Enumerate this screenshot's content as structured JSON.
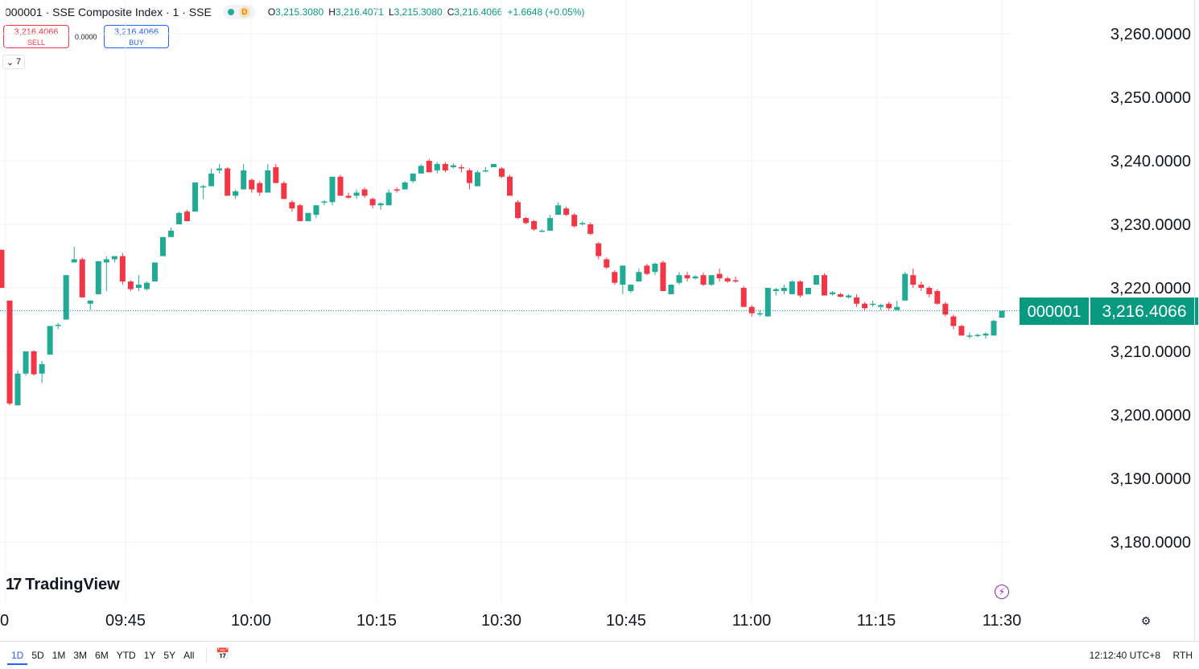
{
  "header": {
    "title": "000001 · SSE Composite Index · 1 · SSE",
    "d_badge": "D",
    "ohlc": {
      "o_label": "O",
      "o_value": "3,215.3080",
      "h_label": "H",
      "h_value": "3,216.4071",
      "l_label": "L",
      "l_value": "3,215.3080",
      "c_label": "C",
      "c_value": "3,216.4066",
      "change": "+1.6648 (+0.05%)"
    }
  },
  "trade": {
    "sell_price": "3,216.4066",
    "sell_label": "SELL",
    "spread": "0.0000",
    "buy_price": "3,216.4066",
    "buy_label": "BUY"
  },
  "indicators_toggle": {
    "count": "7"
  },
  "logo": {
    "text": "TradingView"
  },
  "price_tag": {
    "symbol": "000001",
    "price": "3,216.4066"
  },
  "toolbar": {
    "ranges": [
      "1D",
      "5D",
      "1M",
      "3M",
      "6M",
      "YTD",
      "1Y",
      "5Y",
      "All"
    ],
    "active_range": "1D",
    "clock": "12:12:40 UTC+8",
    "session": "RTH"
  },
  "colors": {
    "up": "#22ab94",
    "down": "#f23645",
    "grid": "#f0f3fa",
    "tag": "#089981"
  },
  "chart_data": {
    "type": "candlestick",
    "x_tick_labels": [
      "0",
      "09:45",
      "10:00",
      "10:15",
      "10:30",
      "10:45",
      "11:00",
      "11:15",
      "11:30"
    ],
    "y_tick_labels": [
      "3,260.0000",
      "3,250.0000",
      "3,240.0000",
      "3,230.0000",
      "3,220.0000",
      "3,210.0000",
      "3,200.0000",
      "3,190.0000",
      "3,180.0000"
    ],
    "y_ticks": [
      3260,
      3250,
      3240,
      3230,
      3220,
      3210,
      3200,
      3190,
      3180
    ],
    "last_price": 3216.4066,
    "candles": [
      {
        "o": 3226.0,
        "h": 3226.0,
        "l": 3220.0,
        "c": 3220.0
      },
      {
        "o": 3218.0,
        "h": 3218.0,
        "l": 3201.5,
        "c": 3201.8
      },
      {
        "o": 3201.5,
        "h": 3207.0,
        "l": 3201.5,
        "c": 3206.5
      },
      {
        "o": 3206.5,
        "h": 3210.0,
        "l": 3206.2,
        "c": 3210.0
      },
      {
        "o": 3210.0,
        "h": 3210.2,
        "l": 3206.2,
        "c": 3206.4
      },
      {
        "o": 3206.5,
        "h": 3208.5,
        "l": 3205.0,
        "c": 3208.0
      },
      {
        "o": 3209.5,
        "h": 3214.0,
        "l": 3209.5,
        "c": 3214.0
      },
      {
        "o": 3214.0,
        "h": 3214.5,
        "l": 3213.5,
        "c": 3214.2
      },
      {
        "o": 3215.0,
        "h": 3222.0,
        "l": 3215.0,
        "c": 3222.0
      },
      {
        "o": 3224.0,
        "h": 3226.5,
        "l": 3224.0,
        "c": 3224.5
      },
      {
        "o": 3224.5,
        "h": 3224.8,
        "l": 3218.5,
        "c": 3218.5
      },
      {
        "o": 3217.5,
        "h": 3218.0,
        "l": 3216.5,
        "c": 3218.0
      },
      {
        "o": 3219.0,
        "h": 3224.2,
        "l": 3219.0,
        "c": 3224.2
      },
      {
        "o": 3224.0,
        "h": 3225.0,
        "l": 3219.5,
        "c": 3224.5
      },
      {
        "o": 3224.5,
        "h": 3224.8,
        "l": 3224.0,
        "c": 3225.0
      },
      {
        "o": 3225.0,
        "h": 3225.5,
        "l": 3220.5,
        "c": 3221.0
      },
      {
        "o": 3221.0,
        "h": 3221.2,
        "l": 3219.5,
        "c": 3219.8
      },
      {
        "o": 3220.0,
        "h": 3222.0,
        "l": 3219.5,
        "c": 3220.5
      },
      {
        "o": 3219.8,
        "h": 3221.0,
        "l": 3219.6,
        "c": 3220.8
      },
      {
        "o": 3221.0,
        "h": 3224.0,
        "l": 3221.0,
        "c": 3224.0
      },
      {
        "o": 3225.0,
        "h": 3228.0,
        "l": 3225.0,
        "c": 3228.0
      },
      {
        "o": 3228.0,
        "h": 3229.5,
        "l": 3228.0,
        "c": 3229.0
      },
      {
        "o": 3230.0,
        "h": 3232.0,
        "l": 3230.0,
        "c": 3231.8
      },
      {
        "o": 3232.0,
        "h": 3232.3,
        "l": 3230.5,
        "c": 3230.5
      },
      {
        "o": 3232.0,
        "h": 3236.6,
        "l": 3232.0,
        "c": 3236.6
      },
      {
        "o": 3235.8,
        "h": 3236.2,
        "l": 3234.0,
        "c": 3236.0
      },
      {
        "o": 3236.0,
        "h": 3238.8,
        "l": 3236.0,
        "c": 3238.0
      },
      {
        "o": 3238.5,
        "h": 3239.5,
        "l": 3238.0,
        "c": 3238.8
      },
      {
        "o": 3238.8,
        "h": 3239.0,
        "l": 3234.5,
        "c": 3234.5
      },
      {
        "o": 3234.5,
        "h": 3235.5,
        "l": 3234.0,
        "c": 3235.2
      },
      {
        "o": 3235.5,
        "h": 3239.5,
        "l": 3235.5,
        "c": 3238.5
      },
      {
        "o": 3237.0,
        "h": 3237.2,
        "l": 3235.0,
        "c": 3235.5
      },
      {
        "o": 3236.5,
        "h": 3236.8,
        "l": 3234.5,
        "c": 3235.0
      },
      {
        "o": 3235.0,
        "h": 3239.5,
        "l": 3235.0,
        "c": 3238.5
      },
      {
        "o": 3239.0,
        "h": 3239.5,
        "l": 3236.5,
        "c": 3236.5
      },
      {
        "o": 3236.5,
        "h": 3236.8,
        "l": 3234.0,
        "c": 3234.0
      },
      {
        "o": 3233.5,
        "h": 3233.8,
        "l": 3232.0,
        "c": 3232.5
      },
      {
        "o": 3233.0,
        "h": 3233.2,
        "l": 3230.5,
        "c": 3230.5
      },
      {
        "o": 3230.5,
        "h": 3231.5,
        "l": 3230.5,
        "c": 3231.8
      },
      {
        "o": 3231.5,
        "h": 3233.0,
        "l": 3231.0,
        "c": 3233.0
      },
      {
        "o": 3233.5,
        "h": 3233.8,
        "l": 3233.0,
        "c": 3233.6
      },
      {
        "o": 3233.5,
        "h": 3237.5,
        "l": 3233.0,
        "c": 3237.5
      },
      {
        "o": 3237.5,
        "h": 3237.8,
        "l": 3234.5,
        "c": 3234.5
      },
      {
        "o": 3234.5,
        "h": 3235.0,
        "l": 3234.0,
        "c": 3234.2
      },
      {
        "o": 3234.5,
        "h": 3235.5,
        "l": 3234.0,
        "c": 3235.0
      },
      {
        "o": 3235.5,
        "h": 3235.8,
        "l": 3234.2,
        "c": 3234.5
      },
      {
        "o": 3234.0,
        "h": 3234.2,
        "l": 3232.5,
        "c": 3233.0
      },
      {
        "o": 3233.0,
        "h": 3233.5,
        "l": 3232.3,
        "c": 3233.3
      },
      {
        "o": 3233.0,
        "h": 3235.5,
        "l": 3233.0,
        "c": 3235.0
      },
      {
        "o": 3235.5,
        "h": 3235.8,
        "l": 3235.0,
        "c": 3235.3
      },
      {
        "o": 3235.5,
        "h": 3236.8,
        "l": 3235.5,
        "c": 3236.6
      },
      {
        "o": 3236.8,
        "h": 3238.0,
        "l": 3236.5,
        "c": 3238.0
      },
      {
        "o": 3238.0,
        "h": 3239.5,
        "l": 3238.0,
        "c": 3239.2
      },
      {
        "o": 3240.0,
        "h": 3240.3,
        "l": 3238.2,
        "c": 3238.2
      },
      {
        "o": 3238.5,
        "h": 3239.8,
        "l": 3238.0,
        "c": 3239.5
      },
      {
        "o": 3239.5,
        "h": 3239.8,
        "l": 3238.2,
        "c": 3238.5
      },
      {
        "o": 3239.0,
        "h": 3239.6,
        "l": 3238.8,
        "c": 3239.3
      },
      {
        "o": 3239.0,
        "h": 3239.4,
        "l": 3238.2,
        "c": 3238.8
      },
      {
        "o": 3238.5,
        "h": 3238.8,
        "l": 3235.5,
        "c": 3236.5
      },
      {
        "o": 3236.0,
        "h": 3238.5,
        "l": 3236.0,
        "c": 3238.2
      },
      {
        "o": 3238.5,
        "h": 3239.0,
        "l": 3238.2,
        "c": 3238.5
      },
      {
        "o": 3239.0,
        "h": 3239.5,
        "l": 3239.0,
        "c": 3239.5
      },
      {
        "o": 3238.8,
        "h": 3239.0,
        "l": 3237.3,
        "c": 3237.5
      },
      {
        "o": 3237.5,
        "h": 3237.8,
        "l": 3234.5,
        "c": 3234.5
      },
      {
        "o": 3233.5,
        "h": 3233.8,
        "l": 3230.8,
        "c": 3231.0
      },
      {
        "o": 3231.0,
        "h": 3231.2,
        "l": 3230.0,
        "c": 3230.2
      },
      {
        "o": 3230.5,
        "h": 3230.7,
        "l": 3229.0,
        "c": 3229.2
      },
      {
        "o": 3229.0,
        "h": 3229.2,
        "l": 3228.8,
        "c": 3229.0
      },
      {
        "o": 3229.0,
        "h": 3231.5,
        "l": 3229.0,
        "c": 3231.0
      },
      {
        "o": 3231.5,
        "h": 3233.5,
        "l": 3231.5,
        "c": 3233.0
      },
      {
        "o": 3232.5,
        "h": 3232.8,
        "l": 3231.3,
        "c": 3231.5
      },
      {
        "o": 3231.5,
        "h": 3231.8,
        "l": 3229.5,
        "c": 3229.7
      },
      {
        "o": 3230.0,
        "h": 3230.5,
        "l": 3229.8,
        "c": 3230.2
      },
      {
        "o": 3230.0,
        "h": 3230.3,
        "l": 3228.3,
        "c": 3228.5
      },
      {
        "o": 3227.0,
        "h": 3227.2,
        "l": 3224.5,
        "c": 3225.0
      },
      {
        "o": 3224.5,
        "h": 3224.8,
        "l": 3223.0,
        "c": 3223.2
      },
      {
        "o": 3222.5,
        "h": 3222.8,
        "l": 3220.5,
        "c": 3220.8
      },
      {
        "o": 3220.5,
        "h": 3223.5,
        "l": 3219.0,
        "c": 3223.5
      },
      {
        "o": 3219.5,
        "h": 3220.5,
        "l": 3219.2,
        "c": 3220.5
      },
      {
        "o": 3221.0,
        "h": 3223.0,
        "l": 3221.0,
        "c": 3222.5
      },
      {
        "o": 3223.5,
        "h": 3223.8,
        "l": 3222.0,
        "c": 3222.2
      },
      {
        "o": 3222.5,
        "h": 3224.0,
        "l": 3222.0,
        "c": 3223.8
      },
      {
        "o": 3224.0,
        "h": 3224.3,
        "l": 3219.5,
        "c": 3219.5
      },
      {
        "o": 3219.0,
        "h": 3220.5,
        "l": 3219.0,
        "c": 3220.5
      },
      {
        "o": 3220.8,
        "h": 3222.5,
        "l": 3220.5,
        "c": 3222.0
      },
      {
        "o": 3222.0,
        "h": 3222.5,
        "l": 3221.0,
        "c": 3221.5
      },
      {
        "o": 3221.5,
        "h": 3222.0,
        "l": 3221.3,
        "c": 3221.8
      },
      {
        "o": 3222.0,
        "h": 3222.4,
        "l": 3220.3,
        "c": 3220.5
      },
      {
        "o": 3220.5,
        "h": 3222.0,
        "l": 3220.3,
        "c": 3222.0
      },
      {
        "o": 3222.2,
        "h": 3223.0,
        "l": 3221.0,
        "c": 3221.5
      },
      {
        "o": 3221.5,
        "h": 3221.8,
        "l": 3220.8,
        "c": 3221.0
      },
      {
        "o": 3221.2,
        "h": 3221.8,
        "l": 3220.8,
        "c": 3221.0
      },
      {
        "o": 3220.0,
        "h": 3220.3,
        "l": 3217.0,
        "c": 3217.0
      },
      {
        "o": 3217.0,
        "h": 3217.3,
        "l": 3215.5,
        "c": 3216.0
      },
      {
        "o": 3216.0,
        "h": 3216.5,
        "l": 3215.5,
        "c": 3216.0
      },
      {
        "o": 3215.5,
        "h": 3220.0,
        "l": 3215.5,
        "c": 3220.0
      },
      {
        "o": 3219.5,
        "h": 3220.0,
        "l": 3218.8,
        "c": 3219.8
      },
      {
        "o": 3219.5,
        "h": 3220.5,
        "l": 3219.0,
        "c": 3220.0
      },
      {
        "o": 3219.0,
        "h": 3221.2,
        "l": 3219.0,
        "c": 3221.0
      },
      {
        "o": 3221.0,
        "h": 3221.2,
        "l": 3218.5,
        "c": 3218.8
      },
      {
        "o": 3219.0,
        "h": 3220.0,
        "l": 3219.0,
        "c": 3220.0
      },
      {
        "o": 3220.5,
        "h": 3222.0,
        "l": 3220.5,
        "c": 3222.0
      },
      {
        "o": 3222.0,
        "h": 3222.3,
        "l": 3218.8,
        "c": 3218.8
      },
      {
        "o": 3219.0,
        "h": 3219.5,
        "l": 3218.8,
        "c": 3219.3
      },
      {
        "o": 3219.0,
        "h": 3219.2,
        "l": 3218.5,
        "c": 3218.6
      },
      {
        "o": 3218.5,
        "h": 3219.0,
        "l": 3218.3,
        "c": 3218.8
      },
      {
        "o": 3218.5,
        "h": 3219.0,
        "l": 3217.0,
        "c": 3217.5
      },
      {
        "o": 3217.5,
        "h": 3217.8,
        "l": 3216.5,
        "c": 3216.8
      },
      {
        "o": 3217.5,
        "h": 3218.0,
        "l": 3217.0,
        "c": 3217.5
      },
      {
        "o": 3217.0,
        "h": 3217.5,
        "l": 3216.5,
        "c": 3217.3
      },
      {
        "o": 3217.5,
        "h": 3217.8,
        "l": 3216.5,
        "c": 3216.8
      },
      {
        "o": 3216.5,
        "h": 3218.0,
        "l": 3216.5,
        "c": 3217.0
      },
      {
        "o": 3218.0,
        "h": 3222.5,
        "l": 3218.0,
        "c": 3222.2
      },
      {
        "o": 3222.0,
        "h": 3223.0,
        "l": 3220.0,
        "c": 3220.5
      },
      {
        "o": 3220.5,
        "h": 3221.0,
        "l": 3219.5,
        "c": 3220.0
      },
      {
        "o": 3220.0,
        "h": 3220.3,
        "l": 3218.5,
        "c": 3219.0
      },
      {
        "o": 3219.5,
        "h": 3219.8,
        "l": 3217.3,
        "c": 3217.5
      },
      {
        "o": 3217.5,
        "h": 3217.8,
        "l": 3215.5,
        "c": 3215.8
      },
      {
        "o": 3215.5,
        "h": 3215.8,
        "l": 3213.5,
        "c": 3214.0
      },
      {
        "o": 3214.0,
        "h": 3214.2,
        "l": 3212.5,
        "c": 3212.5
      },
      {
        "o": 3212.5,
        "h": 3213.0,
        "l": 3212.0,
        "c": 3212.5
      },
      {
        "o": 3212.5,
        "h": 3212.8,
        "l": 3212.2,
        "c": 3212.6
      },
      {
        "o": 3212.5,
        "h": 3213.0,
        "l": 3212.0,
        "c": 3212.8
      },
      {
        "o": 3212.5,
        "h": 3215.0,
        "l": 3212.5,
        "c": 3214.8
      },
      {
        "o": 3215.3,
        "h": 3216.4,
        "l": 3215.3,
        "c": 3216.4
      }
    ]
  }
}
